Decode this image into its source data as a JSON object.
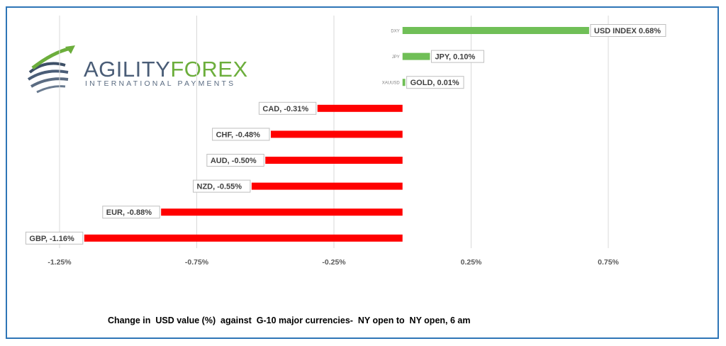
{
  "logo": {
    "word_a": "AGILITY",
    "word_b": "FOREX",
    "subtitle": "INTERNATIONAL PAYMENTS"
  },
  "caption": "Change in  USD value (%)  against  G-10 major currencies-  NY open to  NY open, 6 am",
  "colors": {
    "positive": "#70bf57",
    "negative": "#ff0000",
    "frame": "#2e75b6",
    "grid": "#d9d9d9"
  },
  "chart_data": {
    "type": "bar",
    "orientation": "horizontal",
    "categories": [
      "DXY",
      "JPY",
      "XAUUSD",
      "CAD",
      "CHF",
      "AUD",
      "NZD",
      "EUR",
      "GBP"
    ],
    "values": [
      0.68,
      0.1,
      0.01,
      -0.31,
      -0.48,
      -0.5,
      -0.55,
      -0.88,
      -1.16
    ],
    "data_labels": [
      "USD INDEX 0.68%",
      "JPY, 0.10%",
      "GOLD, 0.01%",
      "CAD, -0.31%",
      "CHF, -0.48%",
      "AUD, -0.50%",
      "NZD, -0.55%",
      "EUR, -0.88%",
      "GBP, -1.16%"
    ],
    "x_ticks": [
      -1.25,
      -0.75,
      -0.25,
      0.25,
      0.75
    ],
    "x_tick_labels": [
      "-1.25%",
      "-0.75%",
      "-0.25%",
      "0.25%",
      "0.75%"
    ],
    "xlim": [
      -1.25,
      0.75
    ],
    "grid": true,
    "legend": "none"
  }
}
